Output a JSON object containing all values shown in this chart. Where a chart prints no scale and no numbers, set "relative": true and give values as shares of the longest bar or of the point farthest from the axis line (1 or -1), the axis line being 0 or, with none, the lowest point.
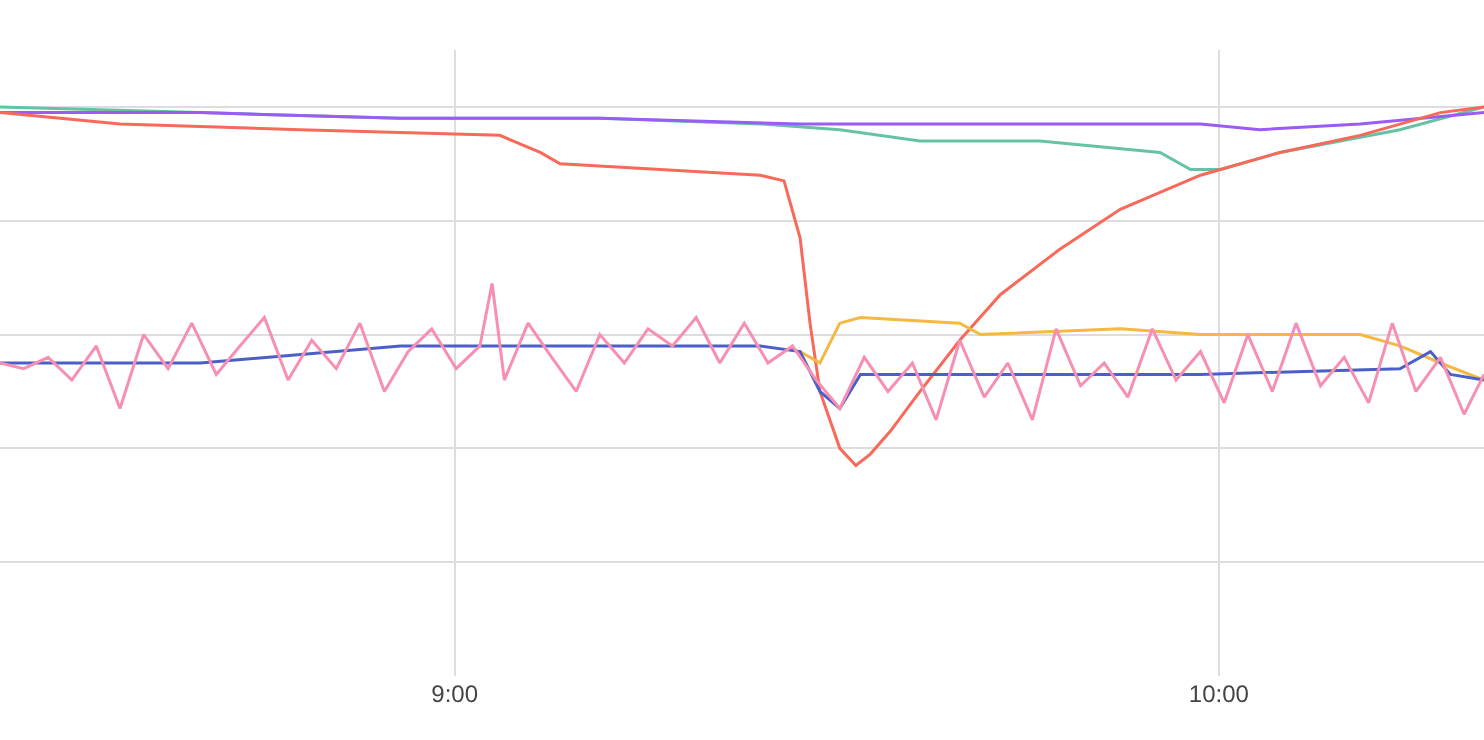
{
  "chart_data": {
    "type": "line",
    "relative": true,
    "grid": true,
    "xlim": [
      8.405,
      10.347
    ],
    "xticks": [
      {
        "value": 9,
        "label": "9:00"
      },
      {
        "value": 10,
        "label": "10:00"
      }
    ],
    "series": [
      {
        "color": "#66c2a5",
        "x": [
          8.405,
          8.667,
          8.929,
          9.19,
          9.4,
          9.504,
          9.609,
          9.766,
          9.923,
          9.963,
          10.002,
          10.08,
          10.237,
          10.347
        ],
        "values": [
          1.0,
          0.99,
          0.98,
          0.98,
          0.97,
          0.96,
          0.94,
          0.94,
          0.92,
          0.89,
          0.89,
          0.92,
          0.96,
          1.0
        ]
      },
      {
        "color": "#9b5cf6",
        "x": [
          8.405,
          8.667,
          8.929,
          9.19,
          9.452,
          9.714,
          9.976,
          10.054,
          10.185,
          10.347
        ],
        "values": [
          0.99,
          0.99,
          0.98,
          0.98,
          0.97,
          0.97,
          0.97,
          0.96,
          0.97,
          0.99
        ]
      },
      {
        "color": "#f8695a",
        "x": [
          8.405,
          8.484,
          8.562,
          8.798,
          9.059,
          9.112,
          9.138,
          9.269,
          9.4,
          9.431,
          9.452,
          9.465,
          9.478,
          9.504,
          9.525,
          9.544,
          9.57,
          9.609,
          9.661,
          9.714,
          9.792,
          9.871,
          9.976,
          10.08,
          10.185,
          10.29,
          10.347
        ],
        "values": [
          0.99,
          0.98,
          0.97,
          0.96,
          0.95,
          0.92,
          0.9,
          0.89,
          0.88,
          0.87,
          0.77,
          0.62,
          0.5,
          0.4,
          0.37,
          0.39,
          0.43,
          0.5,
          0.59,
          0.67,
          0.75,
          0.82,
          0.88,
          0.92,
          0.95,
          0.99,
          1.0
        ]
      },
      {
        "color": "#f5b841",
        "x": [
          9.452,
          9.478,
          9.504,
          9.531,
          9.661,
          9.688,
          9.871,
          9.976,
          10.185,
          10.237,
          10.29,
          10.347
        ],
        "values": [
          0.57,
          0.55,
          0.62,
          0.63,
          0.62,
          0.6,
          0.61,
          0.6,
          0.6,
          0.58,
          0.55,
          0.52
        ]
      },
      {
        "color": "#4a5fc8",
        "x": [
          8.405,
          8.667,
          8.929,
          9.19,
          9.4,
          9.452,
          9.478,
          9.504,
          9.531,
          9.609,
          9.714,
          9.845,
          9.976,
          10.237,
          10.277,
          10.303,
          10.347
        ],
        "values": [
          0.55,
          0.55,
          0.58,
          0.58,
          0.58,
          0.57,
          0.5,
          0.47,
          0.53,
          0.53,
          0.53,
          0.53,
          0.53,
          0.54,
          0.57,
          0.53,
          0.52
        ]
      },
      {
        "color": "#f78fb3",
        "x": [
          8.405,
          8.436,
          8.468,
          8.499,
          8.531,
          8.562,
          8.593,
          8.625,
          8.656,
          8.688,
          8.719,
          8.751,
          8.782,
          8.813,
          8.845,
          8.876,
          8.908,
          8.939,
          8.97,
          9.002,
          9.033,
          9.049,
          9.065,
          9.096,
          9.127,
          9.159,
          9.19,
          9.222,
          9.253,
          9.285,
          9.316,
          9.347,
          9.379,
          9.41,
          9.442,
          9.473,
          9.504,
          9.536,
          9.567,
          9.599,
          9.63,
          9.661,
          9.693,
          9.724,
          9.756,
          9.787,
          9.819,
          9.85,
          9.881,
          9.913,
          9.944,
          9.976,
          10.007,
          10.038,
          10.07,
          10.101,
          10.133,
          10.164,
          10.196,
          10.227,
          10.258,
          10.29,
          10.321,
          10.347
        ],
        "values": [
          0.55,
          0.54,
          0.56,
          0.52,
          0.58,
          0.47,
          0.6,
          0.54,
          0.62,
          0.53,
          0.58,
          0.63,
          0.52,
          0.59,
          0.54,
          0.62,
          0.5,
          0.57,
          0.61,
          0.54,
          0.58,
          0.69,
          0.52,
          0.62,
          0.56,
          0.5,
          0.6,
          0.55,
          0.61,
          0.58,
          0.63,
          0.55,
          0.62,
          0.55,
          0.58,
          0.52,
          0.47,
          0.56,
          0.5,
          0.55,
          0.45,
          0.59,
          0.49,
          0.55,
          0.45,
          0.61,
          0.51,
          0.55,
          0.49,
          0.61,
          0.52,
          0.57,
          0.48,
          0.6,
          0.5,
          0.62,
          0.51,
          0.56,
          0.48,
          0.62,
          0.5,
          0.56,
          0.46,
          0.53
        ]
      }
    ]
  }
}
